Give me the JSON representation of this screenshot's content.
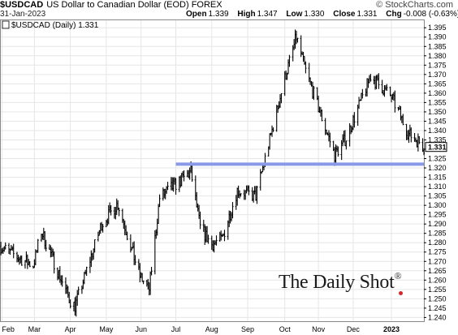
{
  "header": {
    "symbol": "$USDCAD",
    "description": "US Dollar to Canadian Dollar (EOD)",
    "exchange": "FOREX",
    "copyright": "© StockCharts.com",
    "date": "31-Jan-2023",
    "open_label": "Open",
    "open": "1.339",
    "high_label": "High",
    "high": "1.347",
    "low_label": "Low",
    "low": "1.330",
    "close_label": "Close",
    "close": "1.331",
    "chg_label": "Chg",
    "chg": "-0.008 (-0.63%)"
  },
  "legend": {
    "text": "$USDCAD (Daily) 1.331"
  },
  "brand": {
    "text": "The Daily Shot",
    "mark": "®"
  },
  "colors": {
    "price": "#000000",
    "support_line": "#8899e8",
    "grid": "#e6e6e6",
    "last_price_box": "#000000"
  },
  "chart_data": {
    "type": "ohlc",
    "title": "$USDCAD (Daily) 1.331",
    "ylim": [
      1.238,
      1.399
    ],
    "y_ticks": [
      1.24,
      1.245,
      1.25,
      1.255,
      1.26,
      1.265,
      1.27,
      1.275,
      1.28,
      1.285,
      1.29,
      1.295,
      1.3,
      1.305,
      1.31,
      1.315,
      1.32,
      1.325,
      1.33,
      1.335,
      1.34,
      1.345,
      1.35,
      1.355,
      1.36,
      1.365,
      1.37,
      1.375,
      1.38,
      1.385,
      1.39,
      1.395
    ],
    "y_tick_labels": [
      "1.240",
      "1.245",
      "1.250",
      "1.255",
      "1.260",
      "1.265",
      "1.270",
      "1.275",
      "1.280",
      "1.285",
      "1.290",
      "1.295",
      "1.300",
      "1.305",
      "1.310",
      "1.315",
      "1.320",
      "1.325",
      "1.330",
      "1.335",
      "1.340",
      "1.345",
      "1.350",
      "1.355",
      "1.360",
      "1.365",
      "1.370",
      "1.375",
      "1.380",
      "1.385",
      "1.390",
      "1.395"
    ],
    "x_tick_labels": [
      "Feb",
      "Mar",
      "Apr",
      "May",
      "Jun",
      "Jul",
      "Aug",
      "Sep",
      "Oct",
      "Nov",
      "Dec",
      "2023"
    ],
    "x_tick_dates": [
      "2022-02-01",
      "2022-03-01",
      "2022-04-01",
      "2022-05-02",
      "2022-06-01",
      "2022-07-01",
      "2022-08-01",
      "2022-09-01",
      "2022-10-03",
      "2022-11-01",
      "2022-12-01",
      "2023-01-03"
    ],
    "x_range": [
      "2022-01-31",
      "2023-01-31"
    ],
    "last_value_label": "1.331",
    "support_line": {
      "value": 1.322,
      "start": "2022-07-01",
      "end": "2023-01-31"
    },
    "grid": true,
    "legend_position": "top-left",
    "anchors": [
      [
        "2022-01-31",
        1.278
      ],
      [
        "2022-02-15",
        1.272
      ],
      [
        "2022-02-28",
        1.268
      ],
      [
        "2022-03-07",
        1.286
      ],
      [
        "2022-03-31",
        1.25
      ],
      [
        "2022-04-05",
        1.246
      ],
      [
        "2022-04-28",
        1.29
      ],
      [
        "2022-05-12",
        1.301
      ],
      [
        "2022-05-31",
        1.262
      ],
      [
        "2022-06-08",
        1.255
      ],
      [
        "2022-06-17",
        1.304
      ],
      [
        "2022-07-14",
        1.318
      ],
      [
        "2022-07-22",
        1.288
      ],
      [
        "2022-08-01",
        1.279
      ],
      [
        "2022-08-10",
        1.282
      ],
      [
        "2022-08-23",
        1.308
      ],
      [
        "2022-09-08",
        1.305
      ],
      [
        "2022-09-16",
        1.325
      ],
      [
        "2022-10-03",
        1.368
      ],
      [
        "2022-10-13",
        1.39
      ],
      [
        "2022-10-21",
        1.372
      ],
      [
        "2022-11-15",
        1.327
      ],
      [
        "2022-11-25",
        1.336
      ],
      [
        "2022-12-16",
        1.369
      ],
      [
        "2023-01-03",
        1.358
      ],
      [
        "2023-01-18",
        1.338
      ],
      [
        "2023-01-27",
        1.334
      ],
      [
        "2023-01-31",
        1.331
      ]
    ]
  }
}
